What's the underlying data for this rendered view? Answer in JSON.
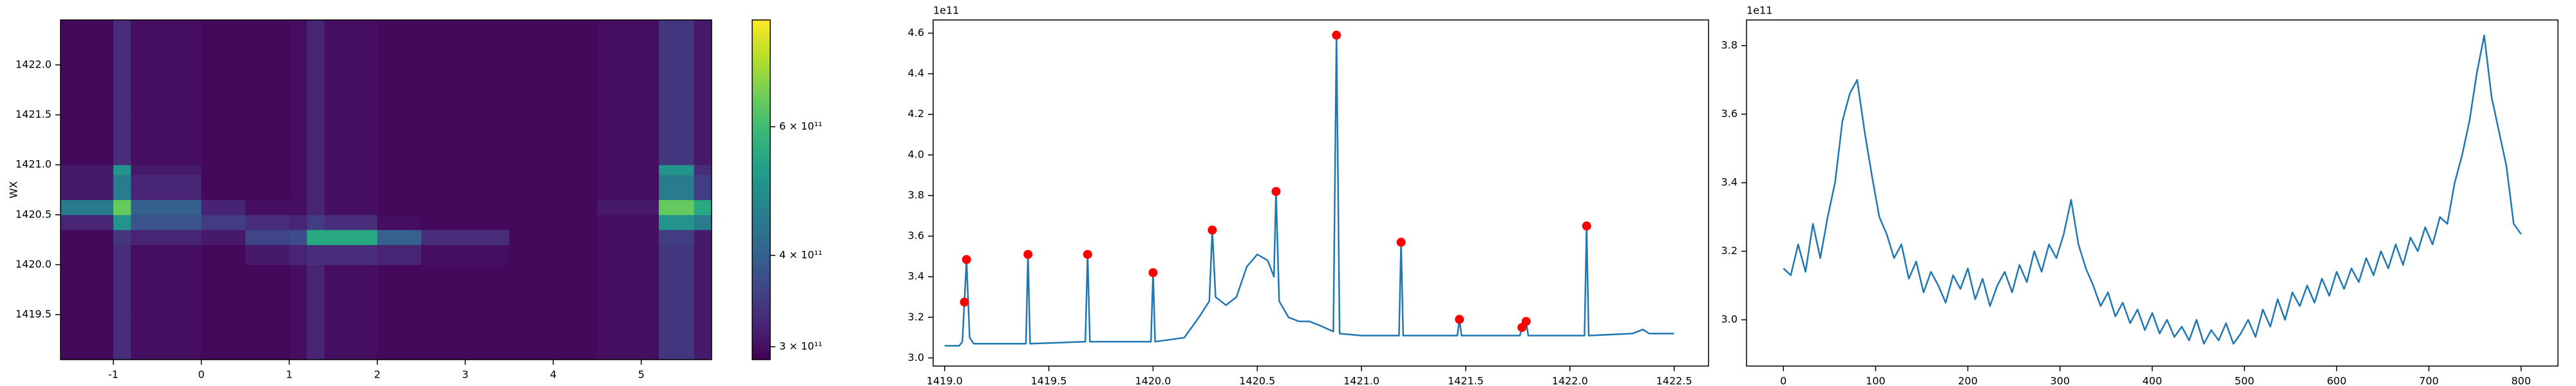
{
  "chart_data": [
    {
      "type": "heatmap",
      "y_label": "WX",
      "colormap": "viridis",
      "zscale": "log",
      "xlim": [
        -1.6,
        5.8
      ],
      "ylim": [
        1419.05,
        1422.45
      ],
      "xticks": [
        -1,
        0,
        1,
        2,
        3,
        4,
        5
      ],
      "yticks": [
        {
          "value": 1419.5,
          "label": "1419.5"
        },
        {
          "value": 1420.0,
          "label": "1420.0"
        },
        {
          "value": 1420.5,
          "label": "1420.5"
        },
        {
          "value": 1421.0,
          "label": "1421.0"
        },
        {
          "value": 1421.5,
          "label": "1421.5"
        },
        {
          "value": 1422.0,
          "label": "1422.0"
        }
      ],
      "xbins": [
        -1.6,
        -1.0,
        -0.8,
        0,
        0.5,
        1.0,
        1.2,
        1.4,
        2.0,
        2.5,
        3.5,
        4.5,
        5.2,
        5.6,
        5.8
      ],
      "ybins": [
        1419.05,
        1419.5,
        1420.0,
        1420.2,
        1420.35,
        1420.5,
        1420.65,
        1420.9,
        1421.0,
        1421.5,
        1422.0,
        1422.45
      ],
      "z": [
        [
          295000000000.0,
          330000000000.0,
          300000000000.0,
          295000000000.0,
          295000000000.0,
          300000000000.0,
          320000000000.0,
          300000000000.0,
          295000000000.0,
          295000000000.0,
          295000000000.0,
          300000000000.0,
          340000000000.0,
          310000000000.0
        ],
        [
          295000000000.0,
          330000000000.0,
          300000000000.0,
          295000000000.0,
          295000000000.0,
          300000000000.0,
          320000000000.0,
          300000000000.0,
          295000000000.0,
          295000000000.0,
          295000000000.0,
          300000000000.0,
          340000000000.0,
          310000000000.0
        ],
        [
          295000000000.0,
          330000000000.0,
          300000000000.0,
          295000000000.0,
          310000000000.0,
          320000000000.0,
          330000000000.0,
          330000000000.0,
          320000000000.0,
          300000000000.0,
          295000000000.0,
          300000000000.0,
          340000000000.0,
          310000000000.0
        ],
        [
          295000000000.0,
          340000000000.0,
          320000000000.0,
          310000000000.0,
          360000000000.0,
          370000000000.0,
          550000000000.0,
          550000000000.0,
          400000000000.0,
          330000000000.0,
          295000000000.0,
          300000000000.0,
          350000000000.0,
          310000000000.0
        ],
        [
          320000000000.0,
          500000000000.0,
          380000000000.0,
          350000000000.0,
          330000000000.0,
          320000000000.0,
          350000000000.0,
          330000000000.0,
          300000000000.0,
          295000000000.0,
          295000000000.0,
          300000000000.0,
          500000000000.0,
          450000000000.0
        ],
        [
          450000000000.0,
          650000000000.0,
          400000000000.0,
          320000000000.0,
          300000000000.0,
          300000000000.0,
          320000000000.0,
          300000000000.0,
          295000000000.0,
          295000000000.0,
          295000000000.0,
          310000000000.0,
          650000000000.0,
          550000000000.0
        ],
        [
          310000000000.0,
          450000000000.0,
          320000000000.0,
          295000000000.0,
          295000000000.0,
          300000000000.0,
          320000000000.0,
          300000000000.0,
          295000000000.0,
          295000000000.0,
          295000000000.0,
          300000000000.0,
          450000000000.0,
          350000000000.0
        ],
        [
          310000000000.0,
          500000000000.0,
          310000000000.0,
          295000000000.0,
          295000000000.0,
          300000000000.0,
          320000000000.0,
          300000000000.0,
          295000000000.0,
          295000000000.0,
          295000000000.0,
          300000000000.0,
          500000000000.0,
          330000000000.0
        ],
        [
          295000000000.0,
          330000000000.0,
          300000000000.0,
          295000000000.0,
          295000000000.0,
          300000000000.0,
          320000000000.0,
          300000000000.0,
          295000000000.0,
          295000000000.0,
          295000000000.0,
          300000000000.0,
          340000000000.0,
          310000000000.0
        ],
        [
          295000000000.0,
          330000000000.0,
          300000000000.0,
          295000000000.0,
          295000000000.0,
          300000000000.0,
          320000000000.0,
          300000000000.0,
          295000000000.0,
          295000000000.0,
          295000000000.0,
          300000000000.0,
          340000000000.0,
          310000000000.0
        ],
        [
          295000000000.0,
          330000000000.0,
          300000000000.0,
          295000000000.0,
          295000000000.0,
          300000000000.0,
          320000000000.0,
          300000000000.0,
          295000000000.0,
          295000000000.0,
          295000000000.0,
          300000000000.0,
          340000000000.0,
          310000000000.0
        ]
      ],
      "zlim": [
        288000000000.0,
        840000000000.0
      ],
      "zticks": [
        {
          "value": 300000000000.0,
          "label": "3 × 10¹¹"
        },
        {
          "value": 400000000000.0,
          "label": "4 × 10¹¹"
        },
        {
          "value": 600000000000.0,
          "label": "6 × 10¹¹"
        }
      ]
    },
    {
      "type": "line",
      "y_offset_label": "1e11",
      "color": "#1f77b4",
      "xlim": [
        1418.945,
        1422.665
      ],
      "ylim": [
        2.96,
        4.665
      ],
      "xticks": [
        {
          "value": 1419.0,
          "label": "1419.0"
        },
        1419.5,
        {
          "value": 1420.0,
          "label": "1420.0"
        },
        1420.5,
        {
          "value": 1421.0,
          "label": "1421.0"
        },
        1421.5,
        {
          "value": 1422.0,
          "label": "1422.0"
        },
        1422.5
      ],
      "yticks": [
        {
          "value": 3.0,
          "label": "3.0"
        },
        3.2,
        3.4,
        3.6,
        3.8,
        {
          "value": 4.0,
          "label": "4.0"
        },
        4.2,
        4.4,
        4.6
      ],
      "x": [
        1419.0,
        1419.07,
        1419.085,
        1419.095,
        1419.105,
        1419.12,
        1419.14,
        1419.39,
        1419.4,
        1419.41,
        1419.675,
        1419.686,
        1419.697,
        1419.99,
        1420.0,
        1420.01,
        1420.15,
        1420.22,
        1420.27,
        1420.284,
        1420.3,
        1420.35,
        1420.4,
        1420.45,
        1420.5,
        1420.55,
        1420.58,
        1420.59,
        1420.605,
        1420.65,
        1420.7,
        1420.75,
        1420.8,
        1420.865,
        1420.88,
        1420.895,
        1421.0,
        1421.18,
        1421.19,
        1421.2,
        1421.46,
        1421.47,
        1421.48,
        1421.76,
        1421.77,
        1421.79,
        1421.8,
        1422.07,
        1422.08,
        1422.09,
        1422.3,
        1422.35,
        1422.38,
        1422.5
      ],
      "values": [
        3.06,
        3.06,
        3.08,
        3.275,
        3.485,
        3.1,
        3.07,
        3.07,
        3.51,
        3.07,
        3.08,
        3.51,
        3.08,
        3.08,
        3.42,
        3.08,
        3.1,
        3.2,
        3.28,
        3.63,
        3.3,
        3.26,
        3.3,
        3.45,
        3.51,
        3.48,
        3.4,
        3.82,
        3.28,
        3.2,
        3.18,
        3.18,
        3.16,
        3.13,
        4.59,
        3.12,
        3.11,
        3.11,
        3.57,
        3.11,
        3.11,
        3.19,
        3.11,
        3.11,
        3.15,
        3.18,
        3.11,
        3.11,
        3.65,
        3.11,
        3.12,
        3.14,
        3.12,
        3.12
      ],
      "peaks": {
        "color": "#ff0000",
        "x": [
          1419.095,
          1419.105,
          1419.4,
          1419.686,
          1420.0,
          1420.284,
          1420.59,
          1420.88,
          1421.19,
          1421.47,
          1421.77,
          1421.79,
          1422.08
        ],
        "values": [
          3.275,
          3.485,
          3.51,
          3.51,
          3.42,
          3.63,
          3.82,
          4.59,
          3.57,
          3.19,
          3.15,
          3.18,
          3.65
        ]
      }
    },
    {
      "type": "line",
      "y_offset_label": "1e11",
      "color": "#1f77b4",
      "xlim": [
        -40,
        840
      ],
      "ylim": [
        2.865,
        3.875
      ],
      "xticks": [
        0,
        100,
        200,
        300,
        400,
        500,
        600,
        700,
        800
      ],
      "yticks": [
        {
          "value": 3.0,
          "label": "3.0"
        },
        3.2,
        3.4,
        3.6,
        3.8
      ],
      "x": [
        0,
        8,
        16,
        24,
        32,
        40,
        48,
        56,
        64,
        72,
        80,
        88,
        96,
        104,
        112,
        120,
        128,
        136,
        144,
        152,
        160,
        168,
        176,
        184,
        192,
        200,
        208,
        216,
        224,
        232,
        240,
        248,
        256,
        264,
        272,
        280,
        288,
        296,
        304,
        312,
        320,
        328,
        336,
        344,
        352,
        360,
        368,
        376,
        384,
        392,
        400,
        408,
        416,
        424,
        432,
        440,
        448,
        456,
        464,
        472,
        480,
        488,
        496,
        504,
        512,
        520,
        528,
        536,
        544,
        552,
        560,
        568,
        576,
        584,
        592,
        600,
        608,
        616,
        624,
        632,
        640,
        648,
        656,
        664,
        672,
        680,
        688,
        696,
        704,
        712,
        720,
        728,
        736,
        744,
        752,
        760,
        768,
        776,
        784,
        792,
        800
      ],
      "values": [
        3.15,
        3.13,
        3.22,
        3.14,
        3.28,
        3.18,
        3.3,
        3.4,
        3.58,
        3.66,
        3.7,
        3.55,
        3.42,
        3.3,
        3.25,
        3.18,
        3.22,
        3.12,
        3.17,
        3.08,
        3.14,
        3.1,
        3.05,
        3.13,
        3.09,
        3.15,
        3.06,
        3.12,
        3.04,
        3.1,
        3.14,
        3.08,
        3.16,
        3.11,
        3.2,
        3.14,
        3.22,
        3.18,
        3.25,
        3.35,
        3.22,
        3.15,
        3.1,
        3.04,
        3.08,
        3.01,
        3.05,
        2.99,
        3.03,
        2.97,
        3.02,
        2.96,
        3.0,
        2.95,
        2.98,
        2.94,
        3.0,
        2.93,
        2.97,
        2.94,
        2.99,
        2.93,
        2.96,
        3.0,
        2.95,
        3.03,
        2.98,
        3.06,
        3.0,
        3.08,
        3.04,
        3.1,
        3.05,
        3.12,
        3.07,
        3.14,
        3.09,
        3.15,
        3.11,
        3.18,
        3.13,
        3.2,
        3.15,
        3.22,
        3.16,
        3.24,
        3.2,
        3.27,
        3.22,
        3.3,
        3.28,
        3.4,
        3.48,
        3.58,
        3.72,
        3.83,
        3.65,
        3.55,
        3.45,
        3.28,
        3.25
      ]
    }
  ]
}
